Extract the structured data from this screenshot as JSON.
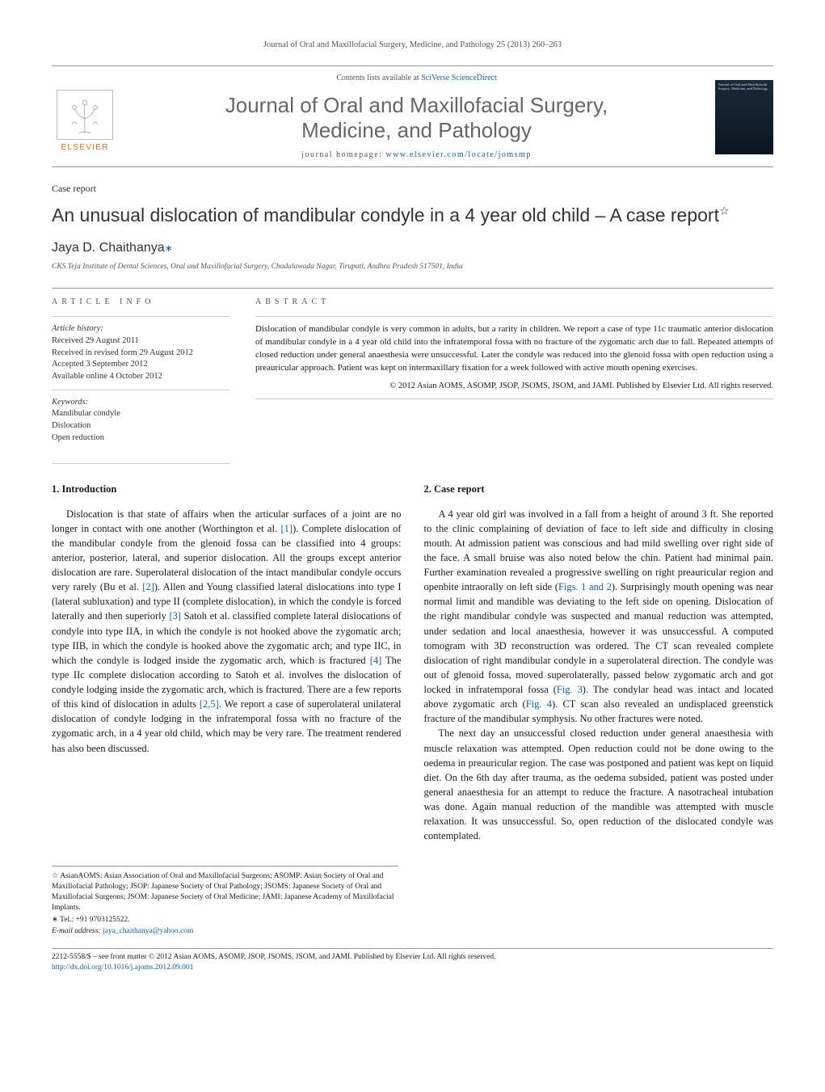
{
  "header_cite": "Journal of Oral and Maxillofacial Surgery, Medicine, and Pathology 25 (2013) 260–263",
  "masthead": {
    "contents_prefix": "Contents lists available at ",
    "contents_link": "SciVerse ScienceDirect",
    "journal_name_line1": "Journal of Oral and Maxillofacial Surgery,",
    "journal_name_line2": "Medicine, and Pathology",
    "home_prefix": "journal homepage: ",
    "home_link": "www.elsevier.com/locate/jomsmp",
    "publisher": "ELSEVIER",
    "cover_text": "Journal of Oral and Maxillofacial Surgery, Medicine, and Pathology"
  },
  "article": {
    "type": "Case report",
    "title": "An unusual dislocation of mandibular condyle in a 4 year old child – A case report",
    "star": "☆",
    "author": "Jaya D. Chaithanya",
    "corr_mark": "∗",
    "affiliation": "CKS Teja Institute of Dental Sciences, Oral and Maxillofacial Surgery, Chadalawada Nagar, Tirupati, Andhra Pradesh 517501, India"
  },
  "info": {
    "head": "article info",
    "history_label": "Article history:",
    "received": "Received 29 August 2011",
    "revised": "Received in revised form 29 August 2012",
    "accepted": "Accepted 3 September 2012",
    "online": "Available online 4 October 2012",
    "keywords_label": "Keywords:",
    "kw1": "Mandibular condyle",
    "kw2": "Dislocation",
    "kw3": "Open reduction"
  },
  "abstract": {
    "head": "abstract",
    "text": "Dislocation of mandibular condyle is very common in adults, but a rarity in children. We report a case of type 11c traumatic anterior dislocation of mandibular condyle in a 4 year old child into the infratemporal fossa with no fracture of the zygomatic arch due to fall. Repeated attempts of closed reduction under general anaesthesia were unsuccessful. Later the condyle was reduced into the glenoid fossa with open reduction using a preauricular approach. Patient was kept on intermaxillary fixation for a week followed with active mouth opening exercises.",
    "copyright": "© 2012 Asian AOMS, ASOMP, JSOP, JSOMS, JSOM, and JAMI. Published by Elsevier Ltd. All rights reserved."
  },
  "body": {
    "s1_head": "1.  Introduction",
    "s1_para": "Dislocation is that state of affairs when the articular surfaces of a joint are no longer in contact with one another (Worthington et al. [1]). Complete dislocation of the mandibular condyle from the glenoid fossa can be classified into 4 groups: anterior, posterior, lateral, and superior dislocation. All the groups except anterior dislocation are rare. Superolateral dislocation of the intact mandibular condyle occurs very rarely (Bu et al. [2]). Allen and Young classified lateral dislocations into type I (lateral subluxation) and type II (complete dislocation), in which the condyle is forced laterally and then superiorly [3] Satoh et al. classified complete lateral dislocations of condyle into type IIA, in which the condyle is not hooked above the zygomatic arch; type IIB, in which the condyle is hooked above the zygomatic arch; and type IIC, in which the condyle is lodged inside the zygomatic arch, which is fractured [4] The type IIc complete dislocation according to Satoh et al. involves the dislocation of condyle lodging inside the zygomatic arch, which is fractured. There are a few reports of this kind of dislocation in adults [2,5]. We report a case of superolateral unilateral dislocation of condyle lodging in the infratemporal fossa with no fracture of the zygomatic arch, in a 4 year old child, which may be very rare. The treatment rendered has also been discussed.",
    "s2_head": "2.  Case report",
    "s2_para1": "A 4 year old girl was involved in a fall from a height of around 3 ft. She reported to the clinic complaining of deviation of face to left side and difficulty in closing mouth. At admission patient was conscious and had mild swelling over right side of the face. A small bruise was also noted below the chin. Patient had minimal pain. Further examination revealed a progressive swelling on right preauricular region and openbite intraorally on left side (Figs. 1 and 2). Surprisingly mouth opening was near normal limit and mandible was deviating to the left side on opening. Dislocation of the right mandibular condyle was suspected and manual reduction was attempted, under sedation and local anaesthesia, however it was unsuccessful. A computed tomogram with 3D reconstruction was ordered. The CT scan revealed complete dislocation of right mandibular condyle in a superolateral direction. The condyle was out of glenoid fossa, moved superolaterally, passed below zygomatic arch and got locked in infratemporal fossa (Fig. 3). The condylar head was intact and located above zygomatic arch (Fig. 4). CT scan also revealed an undisplaced greenstick fracture of the mandibular symphysis. No other fractures were noted.",
    "s2_para2": "The next day an unsuccessful closed reduction under general anaesthesia with muscle relaxation was attempted. Open reduction could not be done owing to the oedema in preauricular region. The case was postponed and patient was kept on liquid diet. On the 6th day after trauma, as the oedema subsided, patient was posted under general anaesthesia for an attempt to reduce the fracture. A nasotracheal intubation was done. Again manual reduction of the mandible was attempted with muscle relaxation. It was unsuccessful. So, open reduction of the dislocated condyle was contemplated."
  },
  "footnotes": {
    "societies": "☆ AsianAOMS: Asian Association of Oral and Maxillofacial Surgeons; ASOMP: Asian Society of Oral and Maxillofacial Pathology; JSOP: Japanese Society of Oral Pathology; JSOMS: Japanese Society of Oral and Maxillofacial Surgeons; JSOM: Japanese Society of Oral Medicine; JAMI: Japanese Academy of Maxillofacial Implants.",
    "tel_label": "∗ Tel.: +91 9703125522.",
    "email_label": "E-mail address: ",
    "email": "jaya_chaithanya@yahoo.com"
  },
  "footer": {
    "issn": "2212-5558/$ – see front matter © 2012 Asian AOMS, ASOMP, JSOP, JSOMS, JSOM, and JAMI. Published by Elsevier Ltd. All rights reserved.",
    "doi": "http://dx.doi.org/10.1016/j.ajoms.2012.09.001"
  },
  "colors": {
    "link": "#1060a8",
    "elsevier": "#e9711c",
    "text": "#1a1a1a",
    "muted": "#555555",
    "rule": "#999999"
  }
}
